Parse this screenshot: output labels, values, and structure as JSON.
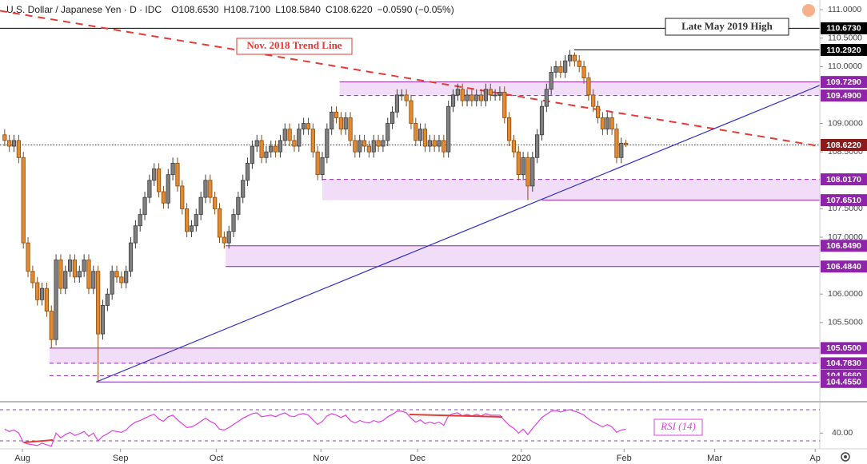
{
  "chart_data": {
    "type": "candlestick",
    "title": "U.S. Dollar / Japanese Yen · D · IDC",
    "ohlc_labels": [
      "O108.6530",
      "H108.7100",
      "L108.5840",
      "C108.6220",
      "−0.0590 (−0.05%)"
    ],
    "open": [
      108.8,
      108.7,
      108.6,
      108.7,
      108.4,
      106.9,
      106.4,
      106.2,
      105.9,
      106.1,
      105.7,
      105.2,
      106.6,
      106.1,
      106.4,
      106.6,
      106.3,
      106.4,
      106.6,
      106.1,
      106.4,
      105.3,
      105.8,
      106.0,
      106.4,
      106.3,
      106.2,
      106.4,
      106.9,
      107.2,
      107.4,
      107.7,
      108.0,
      108.2,
      107.8,
      107.6,
      108.1,
      108.3,
      107.9,
      107.5,
      107.1,
      107.2,
      107.4,
      107.7,
      108.0,
      107.7,
      107.5,
      107.0,
      106.9,
      107.1,
      107.4,
      107.7,
      108.0,
      108.3,
      108.6,
      108.7,
      108.4,
      108.5,
      108.6,
      108.5,
      108.7,
      108.9,
      108.7,
      108.6,
      108.9,
      109.0,
      108.9,
      108.5,
      108.1,
      108.4,
      108.9,
      109.2,
      109.1,
      108.9,
      109.1,
      108.7,
      108.5,
      108.7,
      108.6,
      108.5,
      108.7,
      108.6,
      108.7,
      109.0,
      109.2,
      109.5,
      109.5,
      109.4,
      109.0,
      108.7,
      108.9,
      108.6,
      108.7,
      108.6,
      108.7,
      108.5,
      109.3,
      109.5,
      109.6,
      109.4,
      109.5,
      109.4,
      109.5,
      109.4,
      109.6,
      109.5,
      109.5,
      109.55,
      109.1,
      108.7,
      108.5,
      108.1,
      108.4,
      107.9,
      108.4,
      108.8,
      109.3,
      109.6,
      109.9,
      110.0,
      109.9,
      110.1,
      110.2,
      110.1,
      110.0,
      109.8,
      109.5,
      109.3,
      109.1,
      108.9,
      109.1,
      108.9,
      108.4,
      108.653
    ],
    "high": [
      108.9,
      108.8,
      108.8,
      108.8,
      108.5,
      107.0,
      106.5,
      106.3,
      106.2,
      106.2,
      105.8,
      106.7,
      106.7,
      106.5,
      106.7,
      106.7,
      106.5,
      106.7,
      106.7,
      106.5,
      106.5,
      105.9,
      106.1,
      106.5,
      106.5,
      106.4,
      106.5,
      107.0,
      107.3,
      107.5,
      107.8,
      108.1,
      108.3,
      108.3,
      107.9,
      108.2,
      108.4,
      108.4,
      108.0,
      107.6,
      107.3,
      107.5,
      107.8,
      108.1,
      108.1,
      107.8,
      107.6,
      107.1,
      107.2,
      107.5,
      107.8,
      108.1,
      108.4,
      108.7,
      108.8,
      108.8,
      108.6,
      108.7,
      108.7,
      108.8,
      109.0,
      109.0,
      108.8,
      109.0,
      109.1,
      109.1,
      109.0,
      108.6,
      108.5,
      109.0,
      109.3,
      109.3,
      109.2,
      109.2,
      109.2,
      108.8,
      108.8,
      108.8,
      108.7,
      108.8,
      108.8,
      108.8,
      109.1,
      109.3,
      109.6,
      109.6,
      109.6,
      109.5,
      109.1,
      109.0,
      109.0,
      108.8,
      108.8,
      108.8,
      108.8,
      109.4,
      109.6,
      109.7,
      109.7,
      109.6,
      109.6,
      109.6,
      109.6,
      109.7,
      109.7,
      109.6,
      109.65,
      109.65,
      109.2,
      108.8,
      108.6,
      108.5,
      108.5,
      108.5,
      108.9,
      109.4,
      109.7,
      110.0,
      110.1,
      110.1,
      110.2,
      110.292,
      110.25,
      110.2,
      110.1,
      109.9,
      109.6,
      109.4,
      109.2,
      109.2,
      109.2,
      109.0,
      108.75,
      108.71
    ],
    "low": [
      108.6,
      108.5,
      108.5,
      108.3,
      106.8,
      106.3,
      106.1,
      105.8,
      105.8,
      105.6,
      105.05,
      105.1,
      106.0,
      106.0,
      106.3,
      106.2,
      106.2,
      106.3,
      106.0,
      106.0,
      104.455,
      105.2,
      105.7,
      105.9,
      106.2,
      106.1,
      106.1,
      106.3,
      106.8,
      107.1,
      107.3,
      107.6,
      107.9,
      107.7,
      107.5,
      107.5,
      108.0,
      107.8,
      107.4,
      107.0,
      107.0,
      107.1,
      107.3,
      107.6,
      107.6,
      107.4,
      106.9,
      106.8,
      106.8,
      107.0,
      107.3,
      107.6,
      107.9,
      108.2,
      108.5,
      108.3,
      108.3,
      108.4,
      108.4,
      108.4,
      108.6,
      108.6,
      108.5,
      108.5,
      108.8,
      108.8,
      108.4,
      108.0,
      108.0,
      108.3,
      108.8,
      109.0,
      108.8,
      108.8,
      108.6,
      108.4,
      108.4,
      108.5,
      108.4,
      108.4,
      108.5,
      108.5,
      108.6,
      108.9,
      109.1,
      109.4,
      109.3,
      108.9,
      108.6,
      108.6,
      108.5,
      108.5,
      108.5,
      108.5,
      108.4,
      108.4,
      109.2,
      109.4,
      109.3,
      109.3,
      109.3,
      109.3,
      109.3,
      109.3,
      109.4,
      109.4,
      109.4,
      109.0,
      108.6,
      108.4,
      108.0,
      108.0,
      107.651,
      107.8,
      108.3,
      108.7,
      109.2,
      109.5,
      109.8,
      109.8,
      109.8,
      110.0,
      110.0,
      109.9,
      109.7,
      109.4,
      109.2,
      109.0,
      108.8,
      108.8,
      108.8,
      108.3,
      108.3,
      108.584
    ],
    "close": [
      108.7,
      108.6,
      108.7,
      108.4,
      106.9,
      106.4,
      106.2,
      105.9,
      106.1,
      105.7,
      105.2,
      106.6,
      106.1,
      106.4,
      106.6,
      106.3,
      106.4,
      106.6,
      106.1,
      106.4,
      105.3,
      105.8,
      106.0,
      106.4,
      106.3,
      106.2,
      106.4,
      106.9,
      107.2,
      107.4,
      107.7,
      108.0,
      108.2,
      107.8,
      107.6,
      108.1,
      108.3,
      107.9,
      107.5,
      107.1,
      107.2,
      107.4,
      107.7,
      108.0,
      107.7,
      107.5,
      107.0,
      106.9,
      107.1,
      107.4,
      107.7,
      108.0,
      108.3,
      108.6,
      108.7,
      108.4,
      108.5,
      108.6,
      108.5,
      108.7,
      108.9,
      108.7,
      108.6,
      108.9,
      109.0,
      108.9,
      108.5,
      108.1,
      108.4,
      108.9,
      109.2,
      109.1,
      108.9,
      109.1,
      108.7,
      108.5,
      108.7,
      108.6,
      108.5,
      108.7,
      108.6,
      108.7,
      109.0,
      109.2,
      109.5,
      109.5,
      109.4,
      109.0,
      108.7,
      108.9,
      108.6,
      108.7,
      108.6,
      108.7,
      108.5,
      109.3,
      109.5,
      109.6,
      109.4,
      109.5,
      109.4,
      109.5,
      109.4,
      109.6,
      109.5,
      109.5,
      109.55,
      109.1,
      108.7,
      108.5,
      108.1,
      108.4,
      107.9,
      108.4,
      108.8,
      109.3,
      109.6,
      109.9,
      110.0,
      109.9,
      110.1,
      110.2,
      110.1,
      110.0,
      109.8,
      109.5,
      109.3,
      109.1,
      108.9,
      109.1,
      108.9,
      108.4,
      108.653,
      108.622
    ],
    "up_color": "#7f7f7f",
    "down_color": "#e38a2e",
    "xlim": [
      -1,
      174.5
    ],
    "xticks": [
      {
        "value": 3.8,
        "label": "Aug"
      },
      {
        "value": 24.8,
        "label": "Sep"
      },
      {
        "value": 45.3,
        "label": "Oct"
      },
      {
        "value": 67.7,
        "label": "Nov"
      },
      {
        "value": 88.4,
        "label": "Dec"
      },
      {
        "value": 110.6,
        "label": "2020"
      },
      {
        "value": 132.6,
        "label": "Feb"
      },
      {
        "value": 152,
        "label": "Mar"
      },
      {
        "value": 173.5,
        "label": "Ap"
      }
    ],
    "ylim": [
      104.15,
      111.17
    ],
    "yticks": [
      {
        "value": 111,
        "label": "111.0000"
      },
      {
        "value": 110.5,
        "label": "110.5000"
      },
      {
        "value": 110,
        "label": "110.0000"
      },
      {
        "value": 109,
        "label": "109.0000"
      },
      {
        "value": 108.5,
        "label": "108.5000"
      },
      {
        "value": 107.5,
        "label": "107.5000"
      },
      {
        "value": 107,
        "label": "107.0000"
      },
      {
        "value": 106,
        "label": "106.0000"
      },
      {
        "value": 105.5,
        "label": "105.5000"
      }
    ],
    "grid": false,
    "levels": [
      {
        "value": 110.673,
        "label": "110.6730",
        "color": "#000000",
        "style": "solid",
        "from": -1,
        "zone": false
      },
      {
        "value": 110.292,
        "label": "110.2920",
        "color": "#000000",
        "style": "solid",
        "from": 121.9,
        "zone": false
      },
      {
        "value": 109.729,
        "label": "109.7290",
        "color": "#8e24aa",
        "style": "solid",
        "from": 71.7,
        "zone": true
      },
      {
        "value": 109.49,
        "label": "109.4900",
        "color": "#8e24aa",
        "style": "dashed",
        "from": 71.7,
        "zone": false
      },
      {
        "value": 108.622,
        "label": "108.6220",
        "color": "#8b1a1a",
        "style": "dotted",
        "from": -1,
        "zone": false
      },
      {
        "value": 108.017,
        "label": "108.0170",
        "color": "#8e24aa",
        "style": "dashed",
        "from": 68,
        "zone": true
      },
      {
        "value": 107.651,
        "label": "107.6510",
        "color": "#8e24aa",
        "style": "solid",
        "from": 115,
        "zone": false
      },
      {
        "value": 106.849,
        "label": "106.8490",
        "color": "#8e24aa",
        "style": "solid",
        "from": 47.3,
        "zone": true
      },
      {
        "value": 106.484,
        "label": "106.4840",
        "color": "#8e24aa",
        "style": "solid",
        "from": 47.3,
        "zone": false
      },
      {
        "value": 105.05,
        "label": "105.0500",
        "color": "#8e24aa",
        "style": "solid",
        "from": 9.6,
        "zone": true
      },
      {
        "value": 104.783,
        "label": "104.7830",
        "color": "#8e24aa",
        "style": "dashed",
        "from": 9.6,
        "zone": false
      },
      {
        "value": 104.566,
        "label": "104.5660",
        "color": "#8e24aa",
        "style": "dashed",
        "from": 9.6,
        "zone": false
      },
      {
        "value": 104.455,
        "label": "104.4550",
        "color": "#8e24aa",
        "style": "solid",
        "from": 19.6,
        "zone": false
      }
    ],
    "zone_color": "#f1ddf8",
    "trend_lines": [
      {
        "name": "Nov. 2018 Trend Line",
        "color": "#e53935",
        "dashed": true,
        "x": [
          -1,
          174.5
        ],
        "y": [
          110.98,
          108.6
        ]
      },
      {
        "color": "#3030c8",
        "dashed": false,
        "x": [
          19.6,
          174.5
        ],
        "y": [
          104.455,
          109.67
        ]
      }
    ],
    "annotation": "Late May 2019 High",
    "rsi": {
      "name": "RSI (14)",
      "color": "#e040e0",
      "values": [
        45,
        42,
        44,
        40,
        28,
        26,
        25,
        24,
        27,
        25,
        23,
        40,
        34,
        38,
        41,
        37,
        39,
        42,
        36,
        40,
        30,
        36,
        39,
        43,
        42,
        41,
        44,
        50,
        54,
        56,
        59,
        62,
        64,
        58,
        55,
        61,
        63,
        57,
        52,
        47,
        48,
        51,
        55,
        59,
        55,
        52,
        45,
        44,
        47,
        51,
        55,
        59,
        62,
        65,
        66,
        61,
        62,
        63,
        61,
        64,
        66,
        62,
        61,
        64,
        65,
        63,
        57,
        51,
        55,
        62,
        65,
        63,
        60,
        63,
        56,
        53,
        56,
        54,
        53,
        56,
        54,
        56,
        61,
        64,
        68,
        68,
        66,
        59,
        54,
        57,
        52,
        54,
        52,
        54,
        50,
        62,
        65,
        66,
        62,
        64,
        62,
        64,
        62,
        65,
        63,
        63,
        63,
        56,
        50,
        46,
        40,
        45,
        38,
        46,
        53,
        60,
        64,
        68,
        69,
        67,
        69,
        70,
        68,
        66,
        63,
        58,
        54,
        51,
        48,
        51,
        48,
        41,
        44,
        45
      ],
      "ylim": [
        21.8,
        78.2
      ],
      "yticks": [
        {
          "value": 40,
          "label": "40.00"
        }
      ],
      "levels": [
        30,
        70
      ]
    }
  }
}
